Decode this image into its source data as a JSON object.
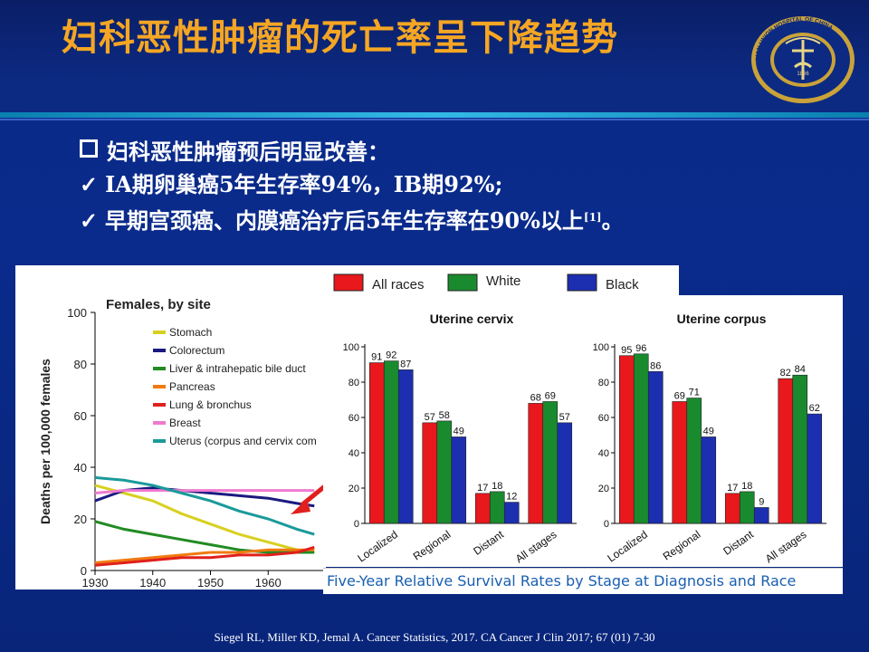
{
  "slide": {
    "title": "妇科恶性肿瘤的死亡率呈下降趋势",
    "bullet_main": "妇科恶性肿瘤预后明显改善：",
    "check_1": "IA期卵巢癌5年生存率94%，IB期92%;",
    "check_2": "早期宫颈癌、内膜癌治疗后5年生存率在90%以上",
    "check_2_ref": "[1]",
    "check_2_end": "。",
    "citation": "Siegel RL, Miller KD, Jemal A. Cancer Statistics, 2017. CA Cancer J Clin 2017; 67 (01) 7-30"
  },
  "colors": {
    "title": "#f5a623",
    "all_races": "#e8181c",
    "white": "#1a8a2e",
    "black": "#1c2fb0"
  },
  "logo": {
    "ring_text": "WUHAN UNION HOSPITAL OF CHINA",
    "inner_text": "中華醫科大學附屬協和醫院",
    "year": "1866"
  },
  "chart_data": [
    {
      "type": "line",
      "title": "Females, by site",
      "ylabel": "Deaths per 100,000 females",
      "xlim": [
        1930,
        1970
      ],
      "ylim": [
        0,
        100
      ],
      "x_ticks": [
        1930,
        1940,
        1950,
        1960
      ],
      "y_ticks": [
        0,
        20,
        40,
        60,
        80,
        100
      ],
      "series": [
        {
          "name": "Stomach",
          "color": "#d8d020",
          "x": [
            1930,
            1935,
            1940,
            1945,
            1950,
            1955,
            1960,
            1965,
            1968
          ],
          "y": [
            33,
            30,
            27,
            22,
            18,
            14,
            11,
            8,
            7
          ]
        },
        {
          "name": "Colorectum",
          "color": "#1a1a80",
          "x": [
            1930,
            1935,
            1940,
            1945,
            1950,
            1955,
            1960,
            1965,
            1968
          ],
          "y": [
            27,
            31,
            32,
            31,
            30,
            29,
            28,
            26,
            25
          ]
        },
        {
          "name": "Liver & intrahepatic bile duct",
          "color": "#228b22",
          "x": [
            1930,
            1935,
            1940,
            1945,
            1950,
            1955,
            1960,
            1965,
            1968
          ],
          "y": [
            19,
            16,
            14,
            12,
            10,
            8,
            7,
            7,
            7
          ]
        },
        {
          "name": "Pancreas",
          "color": "#f07a10",
          "x": [
            1930,
            1935,
            1940,
            1945,
            1950,
            1955,
            1960,
            1965,
            1968
          ],
          "y": [
            3,
            4,
            5,
            6,
            7,
            7,
            8,
            8,
            8
          ]
        },
        {
          "name": "Lung & bronchus",
          "color": "#e0201c",
          "x": [
            1930,
            1935,
            1940,
            1945,
            1950,
            1955,
            1960,
            1965,
            1968
          ],
          "y": [
            2,
            3,
            4,
            5,
            5,
            6,
            6,
            7,
            9
          ]
        },
        {
          "name": "Breast",
          "color": "#f07ad0",
          "x": [
            1930,
            1935,
            1940,
            1945,
            1950,
            1955,
            1960,
            1965,
            1968
          ],
          "y": [
            30,
            31,
            31,
            31,
            31,
            31,
            31,
            31,
            31
          ]
        },
        {
          "name": "Uterus (corpus and cervix com",
          "color": "#1a9a9a",
          "x": [
            1930,
            1935,
            1940,
            1945,
            1950,
            1955,
            1960,
            1965,
            1968
          ],
          "y": [
            36,
            35,
            33,
            30,
            27,
            23,
            20,
            16,
            14
          ]
        }
      ]
    },
    {
      "type": "bar",
      "title": "Uterine cervix",
      "categories": [
        "Localized",
        "Regional",
        "Distant",
        "All stages"
      ],
      "ylim": [
        0,
        100
      ],
      "y_ticks": [
        0,
        20,
        40,
        60,
        80,
        100
      ],
      "series": [
        {
          "name": "All races",
          "values": [
            91,
            57,
            17,
            68
          ]
        },
        {
          "name": "White",
          "values": [
            92,
            58,
            18,
            69
          ]
        },
        {
          "name": "Black",
          "values": [
            87,
            49,
            12,
            57
          ]
        }
      ]
    },
    {
      "type": "bar",
      "title": "Uterine corpus",
      "categories": [
        "Localized",
        "Regional",
        "Distant",
        "All stages"
      ],
      "ylim": [
        0,
        100
      ],
      "y_ticks": [
        0,
        20,
        40,
        60,
        80,
        100
      ],
      "series": [
        {
          "name": "All races",
          "values": [
            95,
            69,
            17,
            82
          ]
        },
        {
          "name": "White",
          "values": [
            96,
            71,
            18,
            84
          ]
        },
        {
          "name": "Black",
          "values": [
            86,
            49,
            9,
            62
          ]
        }
      ]
    }
  ],
  "survival_caption": "Five-Year Relative Survival Rates by Stage at Diagnosis and Race"
}
